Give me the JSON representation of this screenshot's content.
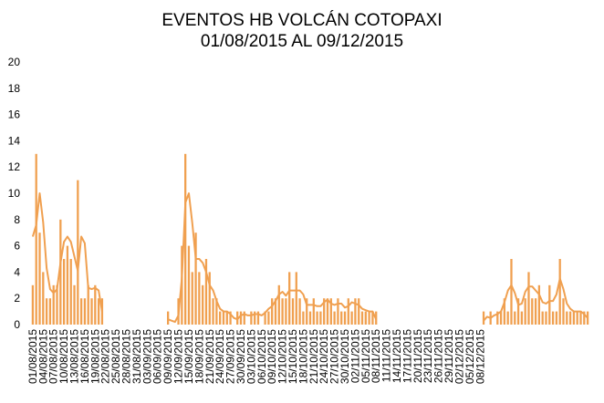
{
  "chart_data": {
    "type": "bar",
    "title": "EVENTOS HB  VOLCÁN COTOPAXI",
    "subtitle": "01/08/2015 AL 09/12/2015",
    "xlabel": "",
    "ylabel": "",
    "ylim": [
      0,
      20
    ],
    "yticks": [
      0,
      2,
      4,
      6,
      8,
      10,
      12,
      14,
      16,
      18,
      20
    ],
    "grid": false,
    "legend": "none",
    "bar_color": "#F0A050",
    "line_color": "#F0A050",
    "start_date": "01/08/2015",
    "tick_labels": [
      "01/08/2015",
      "04/08/2015",
      "07/08/2015",
      "10/08/2015",
      "13/08/2015",
      "16/08/2015",
      "19/08/2015",
      "22/08/2015",
      "25/08/2015",
      "28/08/2015",
      "31/08/2015",
      "03/09/2015",
      "06/09/2015",
      "09/09/2015",
      "12/09/2015",
      "15/09/2015",
      "18/09/2015",
      "21/09/2015",
      "24/09/2015",
      "27/09/2015",
      "30/09/2015",
      "03/10/2015",
      "06/10/2015",
      "09/10/2015",
      "12/10/2015",
      "15/10/2015",
      "18/10/2015",
      "21/10/2015",
      "24/10/2015",
      "27/10/2015",
      "30/10/2015",
      "02/11/2015",
      "05/11/2015",
      "08/11/2015",
      "11/11/2015",
      "14/11/2015",
      "17/11/2015",
      "20/11/2015",
      "23/11/2015",
      "26/11/2015",
      "29/11/2015",
      "02/12/2015",
      "05/12/2015",
      "08/12/2015"
    ],
    "values": [
      3,
      13,
      7,
      4,
      2,
      2,
      3,
      3,
      8,
      5,
      6,
      5,
      3,
      11,
      2,
      2,
      3,
      2,
      3,
      2,
      2,
      0,
      0,
      0,
      0,
      0,
      0,
      0,
      0,
      0,
      0,
      0,
      0,
      0,
      0,
      0,
      0,
      0,
      0,
      1,
      0,
      0,
      2,
      6,
      13,
      6,
      4,
      7,
      4,
      3,
      5,
      4,
      2,
      2,
      1,
      1,
      1,
      1,
      0,
      1,
      1,
      1,
      0,
      1,
      1,
      1,
      0,
      1,
      1,
      2,
      2,
      3,
      2,
      2,
      4,
      2,
      4,
      2,
      1,
      2,
      1,
      2,
      1,
      1,
      2,
      2,
      2,
      1,
      2,
      1,
      1,
      2,
      1,
      2,
      2,
      1,
      1,
      1,
      1,
      1,
      0,
      0,
      0,
      0,
      0,
      0,
      0,
      0,
      0,
      0,
      0,
      0,
      0,
      0,
      0,
      0,
      0,
      0,
      0,
      0,
      0,
      0,
      0,
      0,
      0,
      0,
      0,
      0,
      0,
      0,
      1,
      0,
      1,
      0,
      1,
      1,
      2,
      1,
      5,
      1,
      2,
      1,
      2,
      4,
      2,
      2,
      3,
      1,
      1,
      3,
      1,
      1,
      5,
      2,
      1,
      1,
      1,
      1,
      1,
      1,
      1
    ],
    "series": [
      {
        "type": "bar",
        "values": [
          3,
          13,
          7,
          4,
          2,
          2,
          3,
          3,
          8,
          5,
          6,
          5,
          3,
          11,
          2,
          2,
          3,
          2,
          3,
          2,
          2,
          0,
          0,
          0,
          0,
          0,
          0,
          0,
          0,
          0,
          0,
          0,
          0,
          0,
          0,
          0,
          0,
          0,
          0,
          1,
          0,
          0,
          2,
          6,
          13,
          6,
          4,
          7,
          4,
          3,
          5,
          4,
          2,
          2,
          1,
          1,
          1,
          1,
          0,
          1,
          1,
          1,
          0,
          1,
          1,
          1,
          0,
          1,
          1,
          2,
          2,
          3,
          2,
          2,
          4,
          2,
          4,
          2,
          1,
          2,
          1,
          2,
          1,
          1,
          2,
          2,
          2,
          1,
          2,
          1,
          1,
          2,
          1,
          2,
          2,
          1,
          1,
          1,
          1,
          1,
          0,
          0,
          0,
          0,
          0,
          0,
          0,
          0,
          0,
          0,
          0,
          0,
          0,
          0,
          0,
          0,
          0,
          0,
          0,
          0,
          0,
          0,
          0,
          0,
          0,
          0,
          0,
          0,
          0,
          0,
          1,
          0,
          1,
          0,
          1,
          1,
          2,
          1,
          5,
          1,
          2,
          1,
          2,
          4,
          2,
          2,
          3,
          1,
          1,
          3,
          1,
          1,
          5,
          2,
          1,
          1,
          1,
          1,
          1,
          1,
          1
        ]
      },
      {
        "type": "line",
        "smoothing": "moving average",
        "values": [
          6.7,
          7.6,
          10.0,
          7.8,
          4.3,
          2.7,
          2.4,
          2.7,
          4.7,
          6.3,
          6.7,
          6.3,
          5.2,
          4.1,
          6.7,
          6.2,
          2.8,
          2.7,
          2.8,
          2.6,
          1.0,
          null,
          null,
          null,
          null,
          null,
          null,
          null,
          null,
          null,
          null,
          null,
          null,
          null,
          null,
          null,
          null,
          null,
          null,
          0.4,
          0.3,
          0.2,
          0.7,
          3.6,
          9.3,
          10.0,
          7.7,
          5.0,
          5.0,
          4.7,
          4.0,
          3.0,
          2.6,
          1.8,
          1.2,
          1.0,
          1.0,
          0.8,
          0.5,
          0.4,
          0.7,
          0.8,
          0.7,
          0.7,
          0.8,
          0.8,
          0.7,
          0.9,
          1.2,
          1.4,
          1.8,
          2.3,
          2.5,
          2.2,
          2.6,
          2.6,
          2.6,
          2.6,
          2.3,
          1.5,
          1.5,
          1.5,
          1.4,
          1.4,
          1.7,
          1.9,
          1.6,
          1.5,
          1.6,
          1.6,
          1.3,
          1.4,
          1.7,
          1.6,
          1.5,
          1.2,
          1.1,
          1.0,
          1.0,
          0.4,
          null,
          null,
          null,
          null,
          null,
          null,
          null,
          null,
          null,
          null,
          null,
          null,
          null,
          null,
          null,
          null,
          null,
          null,
          null,
          null,
          null,
          null,
          null,
          null,
          null,
          null,
          null,
          null,
          null,
          null,
          0.3,
          0.6,
          0.5,
          0.7,
          0.8,
          1.0,
          1.7,
          2.6,
          3.0,
          2.4,
          1.5,
          1.6,
          2.5,
          2.9,
          2.9,
          2.6,
          2.3,
          1.7,
          1.6,
          1.8,
          1.8,
          2.3,
          3.5,
          2.7,
          1.6,
          1.2,
          1.0,
          1.0,
          1.0,
          0.8,
          0.5
        ]
      }
    ]
  }
}
